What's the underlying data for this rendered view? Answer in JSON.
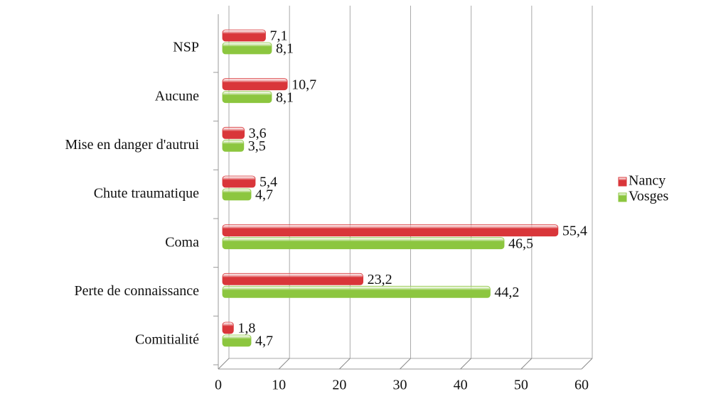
{
  "chart_data": {
    "type": "bar",
    "orientation": "horizontal",
    "categories": [
      "NSP",
      "Aucune",
      "Mise en danger d'autrui",
      "Chute traumatique",
      "Coma",
      "Perte de connaissance",
      "Comitialité"
    ],
    "series": [
      {
        "name": "Nancy",
        "color": "#d9363a",
        "values": [
          7.1,
          10.7,
          3.6,
          5.4,
          55.4,
          23.2,
          1.8
        ],
        "value_labels": [
          "7,1",
          "10,7",
          "3,6",
          "5,4",
          "55,4",
          "23,2",
          "1,8"
        ]
      },
      {
        "name": "Vosges",
        "color": "#8cc63f",
        "values": [
          8.1,
          8.1,
          3.5,
          4.7,
          46.5,
          44.2,
          4.7
        ],
        "value_labels": [
          "8,1",
          "8,1",
          "3,5",
          "4,7",
          "46,5",
          "44,2",
          "4,7"
        ]
      }
    ],
    "xlim": [
      0,
      60
    ],
    "xticks": [
      0,
      10,
      20,
      30,
      40,
      50,
      60
    ],
    "grid": true,
    "legend": "right"
  }
}
